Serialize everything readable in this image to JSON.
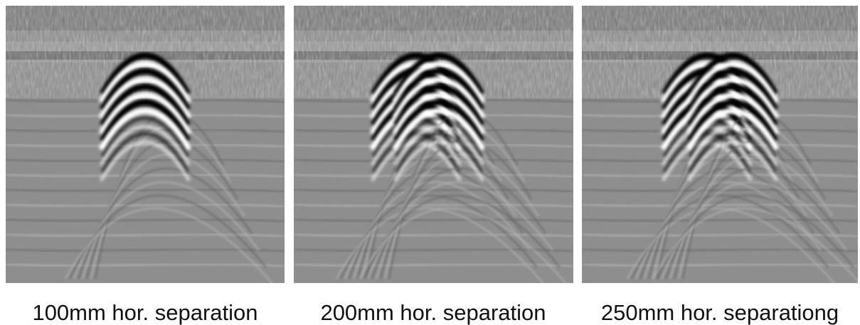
{
  "panels": [
    {
      "caption": "100mm hor. separation"
    },
    {
      "caption": "200mm hor. separation"
    },
    {
      "caption": "250mm hor. separationg"
    }
  ]
}
